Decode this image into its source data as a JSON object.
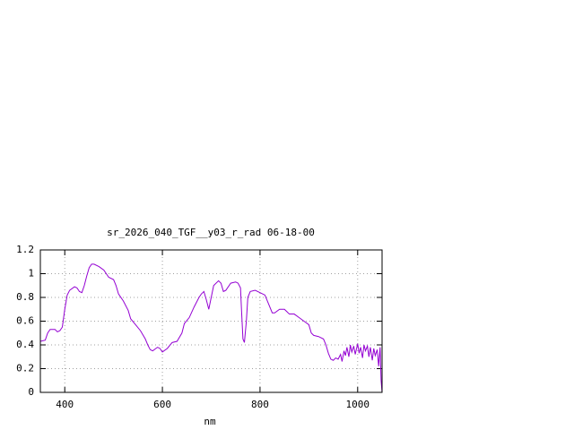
{
  "chart_data": {
    "type": "line",
    "title": "sr_2026_040_TGF__y03_r_rad 06-18-00",
    "x_label": "nm",
    "x": [
      350,
      360,
      365,
      370,
      380,
      385,
      390,
      395,
      400,
      405,
      410,
      420,
      425,
      430,
      435,
      440,
      445,
      450,
      455,
      460,
      470,
      480,
      490,
      500,
      505,
      510,
      520,
      530,
      535,
      545,
      555,
      565,
      570,
      575,
      580,
      590,
      595,
      600,
      610,
      620,
      630,
      640,
      645,
      655,
      665,
      675,
      680,
      685,
      690,
      695,
      700,
      705,
      715,
      720,
      725,
      730,
      740,
      750,
      755,
      760,
      762,
      765,
      768,
      772,
      775,
      780,
      790,
      800,
      810,
      820,
      825,
      830,
      840,
      850,
      855,
      860,
      870,
      880,
      890,
      900,
      905,
      910,
      920,
      930,
      935,
      940,
      945,
      950,
      955,
      960,
      965,
      968,
      972,
      975,
      978,
      982,
      985,
      988,
      992,
      995,
      1000,
      1003,
      1006,
      1010,
      1013,
      1016,
      1020,
      1023,
      1026,
      1030,
      1033,
      1036,
      1040,
      1043,
      1046,
      1048,
      1050
    ],
    "series": [
      {
        "color": "#9400d3",
        "values": [
          0.43,
          0.44,
          0.5,
          0.53,
          0.53,
          0.51,
          0.52,
          0.55,
          0.7,
          0.82,
          0.86,
          0.89,
          0.88,
          0.85,
          0.84,
          0.9,
          0.98,
          1.05,
          1.08,
          1.08,
          1.06,
          1.03,
          0.97,
          0.95,
          0.9,
          0.83,
          0.77,
          0.69,
          0.62,
          0.57,
          0.52,
          0.45,
          0.4,
          0.36,
          0.35,
          0.38,
          0.37,
          0.34,
          0.37,
          0.42,
          0.43,
          0.5,
          0.58,
          0.63,
          0.72,
          0.8,
          0.83,
          0.85,
          0.78,
          0.7,
          0.8,
          0.9,
          0.94,
          0.92,
          0.85,
          0.86,
          0.92,
          0.93,
          0.92,
          0.88,
          0.7,
          0.45,
          0.42,
          0.6,
          0.8,
          0.85,
          0.86,
          0.84,
          0.82,
          0.72,
          0.67,
          0.67,
          0.7,
          0.7,
          0.68,
          0.66,
          0.66,
          0.63,
          0.6,
          0.57,
          0.5,
          0.48,
          0.47,
          0.45,
          0.4,
          0.33,
          0.28,
          0.27,
          0.29,
          0.28,
          0.32,
          0.26,
          0.35,
          0.31,
          0.38,
          0.3,
          0.4,
          0.34,
          0.39,
          0.32,
          0.41,
          0.33,
          0.38,
          0.29,
          0.4,
          0.35,
          0.39,
          0.3,
          0.38,
          0.27,
          0.37,
          0.31,
          0.36,
          0.22,
          0.38,
          0.1,
          0.0
        ]
      }
    ],
    "xlim": [
      350,
      1050
    ],
    "ylim": [
      0,
      1.2
    ],
    "xticks": [
      400,
      600,
      800,
      1000
    ],
    "yticks": [
      0,
      0.2,
      0.4,
      0.6,
      0.8,
      1,
      1.2
    ],
    "grid": true
  }
}
